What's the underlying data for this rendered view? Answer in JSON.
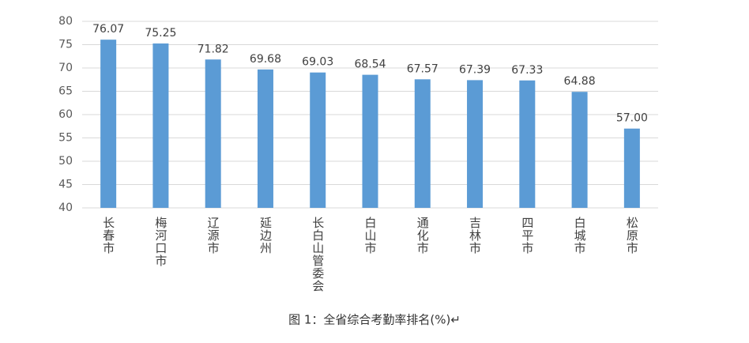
{
  "chart_data": {
    "type": "bar",
    "caption": "图 1：全省综合考勤率排名(%)↵",
    "categories": [
      "长春市",
      "梅河口市",
      "辽源市",
      "延边州",
      "长白山管委会",
      "白山市",
      "通化市",
      "吉林市",
      "四平市",
      "白城市",
      "松原市"
    ],
    "values": [
      76.07,
      75.25,
      71.82,
      69.68,
      69.03,
      68.54,
      67.57,
      67.39,
      67.33,
      64.88,
      57
    ],
    "value_labels": [
      "76.07",
      "75.25",
      "71.82",
      "69.68",
      "69.03",
      "68.54",
      "67.57",
      "67.39",
      "67.33",
      "64.88",
      "57.00"
    ],
    "color": "#5b9bd5",
    "ylim": [
      40,
      80
    ],
    "yticks": [
      40,
      45,
      50,
      55,
      60,
      65,
      70,
      75,
      80
    ],
    "grid": true
  }
}
